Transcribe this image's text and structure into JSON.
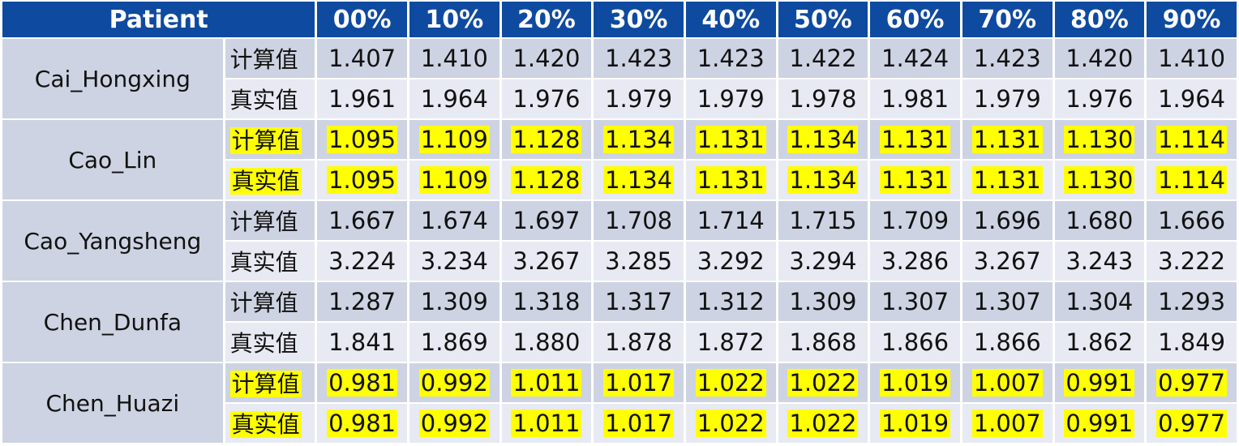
{
  "table": {
    "header": {
      "patient": "Patient",
      "columns": [
        "00%",
        "10%",
        "20%",
        "30%",
        "40%",
        "50%",
        "60%",
        "70%",
        "80%",
        "90%"
      ]
    },
    "highlight_color": "#ffff00",
    "header_color": "#0e4aa0",
    "patients": [
      {
        "name": "Cai_Hongxing",
        "highlighted": false,
        "rows": [
          {
            "label": "计算值",
            "values": [
              "1.407",
              "1.410",
              "1.420",
              "1.423",
              "1.423",
              "1.422",
              "1.424",
              "1.423",
              "1.420",
              "1.410"
            ]
          },
          {
            "label": "真实值",
            "values": [
              "1.961",
              "1.964",
              "1.976",
              "1.979",
              "1.979",
              "1.978",
              "1.981",
              "1.979",
              "1.976",
              "1.964"
            ]
          }
        ]
      },
      {
        "name": "Cao_Lin",
        "highlighted": true,
        "rows": [
          {
            "label": "计算值",
            "values": [
              "1.095",
              "1.109",
              "1.128",
              "1.134",
              "1.131",
              "1.134",
              "1.131",
              "1.131",
              "1.130",
              "1.114"
            ]
          },
          {
            "label": "真实值",
            "values": [
              "1.095",
              "1.109",
              "1.128",
              "1.134",
              "1.131",
              "1.134",
              "1.131",
              "1.131",
              "1.130",
              "1.114"
            ]
          }
        ]
      },
      {
        "name": "Cao_Yangsheng",
        "highlighted": false,
        "rows": [
          {
            "label": "计算值",
            "values": [
              "1.667",
              "1.674",
              "1.697",
              "1.708",
              "1.714",
              "1.715",
              "1.709",
              "1.696",
              "1.680",
              "1.666"
            ]
          },
          {
            "label": "真实值",
            "values": [
              "3.224",
              "3.234",
              "3.267",
              "3.285",
              "3.292",
              "3.294",
              "3.286",
              "3.267",
              "3.243",
              "3.222"
            ]
          }
        ]
      },
      {
        "name": "Chen_Dunfa",
        "highlighted": false,
        "rows": [
          {
            "label": "计算值",
            "values": [
              "1.287",
              "1.309",
              "1.318",
              "1.317",
              "1.312",
              "1.309",
              "1.307",
              "1.307",
              "1.304",
              "1.293"
            ]
          },
          {
            "label": "真实值",
            "values": [
              "1.841",
              "1.869",
              "1.880",
              "1.878",
              "1.872",
              "1.868",
              "1.866",
              "1.866",
              "1.862",
              "1.849"
            ]
          }
        ]
      },
      {
        "name": "Chen_Huazi",
        "highlighted": true,
        "rows": [
          {
            "label": "计算值",
            "values": [
              "0.981",
              "0.992",
              "1.011",
              "1.017",
              "1.022",
              "1.022",
              "1.019",
              "1.007",
              "0.991",
              "0.977"
            ]
          },
          {
            "label": "真实值",
            "values": [
              "0.981",
              "0.992",
              "1.011",
              "1.017",
              "1.022",
              "1.022",
              "1.019",
              "1.007",
              "0.991",
              "0.977"
            ]
          }
        ]
      }
    ]
  }
}
